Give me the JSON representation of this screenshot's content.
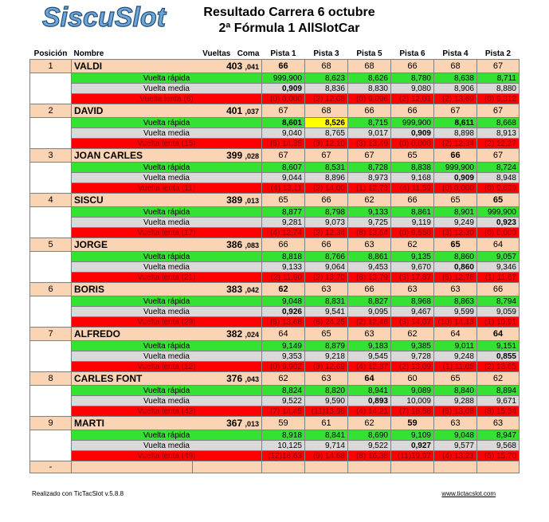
{
  "logo": {
    "text": "SiscuSlot"
  },
  "title": {
    "line1": "Resultado Carrera  6 octubre",
    "line2": "2ª Fórmula 1 AllSlotCar"
  },
  "headers": {
    "posicion": "Posición",
    "nombre": "Nombre",
    "vueltas": "Vueltas",
    "coma": "Coma",
    "tracks": [
      "Pista 1",
      "Pista 3",
      "Pista 5",
      "Pista 6",
      "Pista 4",
      "Pista 2"
    ]
  },
  "row_labels": {
    "fast": "Vuelta rápida",
    "avg": "Vuelta media",
    "slow": "Vuelta  lenta"
  },
  "drivers": [
    {
      "pos": "1",
      "name": "VALDI",
      "laps": "403",
      "coma": ",041",
      "tracks": [
        "66",
        "68",
        "68",
        "66",
        "68",
        "67"
      ],
      "fast": [
        "999,900",
        "8,623",
        "8,626",
        "8,780",
        "8,638",
        "8,711"
      ],
      "avg": [
        "0,909",
        "8,836",
        "8,830",
        "9,080",
        "8,906",
        "8,880"
      ],
      "slow_count": "(6)",
      "slow": [
        "(0)  0,000",
        "(2) 12,08",
        "(0)  9,096",
        "(2) 12,01",
        "(2) 13,69",
        "(0)  9,312"
      ]
    },
    {
      "pos": "2",
      "name": "DAVID",
      "laps": "401",
      "coma": ",037",
      "tracks": [
        "67",
        "68",
        "66",
        "66",
        "67",
        "67"
      ],
      "fast": [
        "8,601",
        "8,526",
        "8,715",
        "999,900",
        "8,611",
        "8,668"
      ],
      "avg": [
        "9,040",
        "8,765",
        "9,017",
        "0,909",
        "8,898",
        "8,913"
      ],
      "slow_count": "(15)",
      "slow": [
        "(5) 14,35",
        "(3) 12,10",
        "(3) 13,49",
        "(0)  0,000",
        "(2) 12,34",
        "(2) 12,27"
      ]
    },
    {
      "pos": "3",
      "name": "JOAN CARLES",
      "laps": "399",
      "coma": ",028",
      "tracks": [
        "67",
        "67",
        "67",
        "65",
        "66",
        "67"
      ],
      "fast": [
        "8,607",
        "8,531",
        "8,728",
        "8,838",
        "999,900",
        "8,724"
      ],
      "avg": [
        "9,044",
        "8,896",
        "8,973",
        "9,168",
        "0,909",
        "8,948"
      ],
      "slow_count": "(11)",
      "slow": [
        "(4) 13,11",
        "(2) 14,00",
        "(1) 12,73",
        "(4) 11,59",
        "(0)  0,000",
        "(0)  9,699"
      ]
    },
    {
      "pos": "4",
      "name": "SISCU",
      "laps": "389",
      "coma": ",013",
      "tracks": [
        "65",
        "66",
        "62",
        "66",
        "65",
        "65"
      ],
      "fast": [
        "8,877",
        "8,798",
        "9,133",
        "8,861",
        "8,901",
        "999,900"
      ],
      "avg": [
        "9,281",
        "9,073",
        "9,725",
        "9,119",
        "9,249",
        "0,923"
      ],
      "slow_count": "(17)",
      "slow": [
        "(4) 12,74",
        "(2) 12,34",
        "(8) 13,64",
        "(0)  9,550",
        "(3) 12,30",
        "(0)  0,000"
      ]
    },
    {
      "pos": "5",
      "name": "JORGE",
      "laps": "386",
      "coma": ",083",
      "tracks": [
        "66",
        "66",
        "63",
        "62",
        "65",
        "64"
      ],
      "fast": [
        "8,818",
        "8,766",
        "8,861",
        "9,135",
        "8,860",
        "9,057"
      ],
      "avg": [
        "9,133",
        "9,064",
        "9,453",
        "9,670",
        "0,860",
        "9,346"
      ],
      "slow_count": "(21)",
      "slow": [
        "(2) 11,90",
        "(2) 13,70",
        "(6) 13,79",
        "(5) 17,87",
        "(5) 12,76",
        "(1) 11,67"
      ]
    },
    {
      "pos": "6",
      "name": "BORIS",
      "laps": "383",
      "coma": ",042",
      "tracks": [
        "62",
        "63",
        "66",
        "63",
        "63",
        "66"
      ],
      "fast": [
        "9,048",
        "8,831",
        "8,827",
        "8,968",
        "8,863",
        "8,794"
      ],
      "avg": [
        "0,926",
        "9,541",
        "9,095",
        "9,467",
        "9,599",
        "9,059"
      ],
      "slow_count": "(29)",
      "slow": [
        "(5) 13,68",
        "(6) 24,25",
        "(2) 12,46",
        "(5) 14,07",
        "(10) 14,13",
        "(1) 10,91"
      ]
    },
    {
      "pos": "7",
      "name": "ALFREDO",
      "laps": "382",
      "coma": ",024",
      "tracks": [
        "64",
        "65",
        "63",
        "62",
        "64",
        "64"
      ],
      "fast": [
        "9,149",
        "8,879",
        "9,183",
        "9,385",
        "9,011",
        "9,151"
      ],
      "avg": [
        "9,353",
        "9,218",
        "9,545",
        "9,728",
        "9,248",
        "0,855"
      ],
      "slow_count": "(12)",
      "slow": [
        "(0)  9,902",
        "(3) 12,69",
        "(4) 12,87",
        "(2) 13,09",
        "(1) 11,05",
        "(2) 13,65"
      ]
    },
    {
      "pos": "8",
      "name": "CARLES FONT",
      "laps": "376",
      "coma": ",043",
      "tracks": [
        "62",
        "63",
        "64",
        "60",
        "65",
        "62"
      ],
      "fast": [
        "8,824",
        "8,820",
        "8,941",
        "9,089",
        "8,840",
        "8,894"
      ],
      "avg": [
        "9,522",
        "9,590",
        "0,893",
        "10,009",
        "9,288",
        "9,671"
      ],
      "slow_count": "(42)",
      "slow": [
        "(7) 14,45",
        "(11)13,98",
        "(4) 14,21",
        "(7) 18,58",
        "(5) 13,08",
        "(8) 15,34"
      ]
    },
    {
      "pos": "9",
      "name": "MARTI",
      "laps": "367",
      "coma": ",013",
      "tracks": [
        "59",
        "61",
        "62",
        "59",
        "63",
        "63"
      ],
      "fast": [
        "8,918",
        "8,841",
        "8,690",
        "9,109",
        "9,048",
        "8,947"
      ],
      "avg": [
        "10,125",
        "9,714",
        "9,522",
        "0,927",
        "9,577",
        "9,568"
      ],
      "slow_count": "(49)",
      "slow": [
        "(12)16,63",
        "(9) 14,68",
        "(8) 16,38",
        "(11)19,97",
        "(4) 13,21",
        "(5) 15,70"
      ]
    }
  ],
  "last_row": {
    "pos": "-"
  },
  "footer": {
    "left": "Realizado con TicTacSlot v.5.8.8",
    "right": "www.tictacslot.com"
  }
}
